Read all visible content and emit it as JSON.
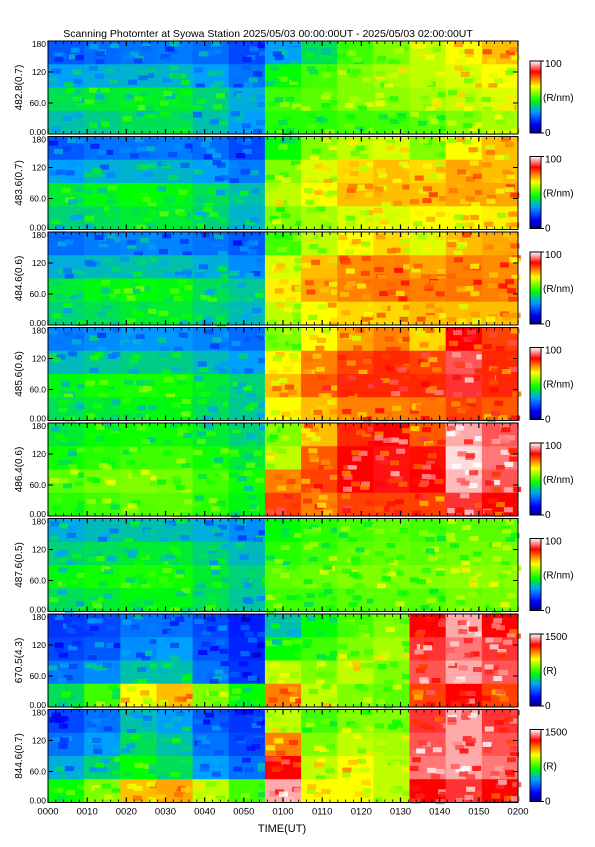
{
  "title": "Scanning Photomter at Syowa Station  2025/05/03 00:00:00UT - 2025/05/03 02:00:00UT",
  "xlabel": "TIME(UT)",
  "x_ticks": [
    "0000",
    "0010",
    "0020",
    "0030",
    "0040",
    "0050",
    "0100",
    "0110",
    "0120",
    "0130",
    "0140",
    "0150",
    "0200"
  ],
  "y_ticks": [
    "0.00",
    "60.0",
    "120",
    "180"
  ],
  "colors": {
    "blue": "#0000ff",
    "green": "#00ff00",
    "yellow": "#ffff00",
    "red": "#ff0000",
    "white": "#ffffff"
  },
  "chart_data": {
    "type": "heatmap",
    "title": "Scanning Photomter at Syowa Station  2025/05/03 00:00:00UT - 2025/05/03 02:00:00UT",
    "xlabel": "TIME(UT)",
    "xlim": [
      "0000",
      "0200"
    ],
    "ylim": [
      0,
      180
    ],
    "panels": [
      {
        "channel": "482.8(0.7)",
        "colorbar_unit": "(R/nm)",
        "colorbar_range": [
          0,
          100
        ],
        "colorbar_ticks": [
          "100",
          "0"
        ],
        "intensity": [
          [
            0.22,
            0.24,
            0.25,
            0.26,
            0.24,
            0.2,
            0.3,
            0.4,
            0.5,
            0.55,
            0.6,
            0.65,
            0.7
          ],
          [
            0.3,
            0.32,
            0.33,
            0.33,
            0.3,
            0.25,
            0.45,
            0.5,
            0.55,
            0.58,
            0.6,
            0.62,
            0.65
          ],
          [
            0.4,
            0.42,
            0.43,
            0.42,
            0.38,
            0.32,
            0.5,
            0.52,
            0.55,
            0.56,
            0.58,
            0.6,
            0.62
          ],
          [
            0.35,
            0.37,
            0.4,
            0.4,
            0.35,
            0.3,
            0.48,
            0.48,
            0.5,
            0.5,
            0.52,
            0.55,
            0.58
          ]
        ]
      },
      {
        "channel": "483.6(0.7)",
        "colorbar_unit": "(R/nm)",
        "colorbar_range": [
          0,
          100
        ],
        "colorbar_ticks": [
          "100",
          "0"
        ],
        "intensity": [
          [
            0.22,
            0.25,
            0.25,
            0.26,
            0.24,
            0.2,
            0.45,
            0.55,
            0.6,
            0.62,
            0.55,
            0.65,
            0.7
          ],
          [
            0.3,
            0.32,
            0.33,
            0.33,
            0.3,
            0.26,
            0.55,
            0.62,
            0.68,
            0.7,
            0.68,
            0.72,
            0.7
          ],
          [
            0.42,
            0.44,
            0.45,
            0.44,
            0.4,
            0.35,
            0.6,
            0.65,
            0.7,
            0.7,
            0.7,
            0.72,
            0.72
          ],
          [
            0.38,
            0.4,
            0.42,
            0.42,
            0.38,
            0.33,
            0.55,
            0.58,
            0.62,
            0.62,
            0.65,
            0.65,
            0.66
          ]
        ]
      },
      {
        "channel": "484.6(0.6)",
        "colorbar_unit": "(R/nm)",
        "colorbar_range": [
          0,
          100
        ],
        "colorbar_ticks": [
          "100",
          "0"
        ],
        "intensity": [
          [
            0.24,
            0.26,
            0.27,
            0.27,
            0.25,
            0.22,
            0.5,
            0.6,
            0.65,
            0.68,
            0.62,
            0.7,
            0.72
          ],
          [
            0.32,
            0.34,
            0.35,
            0.35,
            0.32,
            0.28,
            0.62,
            0.7,
            0.74,
            0.75,
            0.72,
            0.75,
            0.74
          ],
          [
            0.42,
            0.44,
            0.45,
            0.44,
            0.4,
            0.36,
            0.66,
            0.72,
            0.75,
            0.76,
            0.75,
            0.76,
            0.75
          ],
          [
            0.38,
            0.4,
            0.42,
            0.42,
            0.38,
            0.34,
            0.6,
            0.65,
            0.68,
            0.68,
            0.7,
            0.7,
            0.7
          ]
        ]
      },
      {
        "channel": "485.6(0.6)",
        "colorbar_unit": "(R/nm)",
        "colorbar_range": [
          0,
          100
        ],
        "colorbar_ticks": [
          "100",
          "0"
        ],
        "intensity": [
          [
            0.26,
            0.28,
            0.29,
            0.29,
            0.27,
            0.24,
            0.55,
            0.65,
            0.72,
            0.75,
            0.68,
            0.85,
            0.8
          ],
          [
            0.34,
            0.36,
            0.37,
            0.37,
            0.34,
            0.3,
            0.65,
            0.75,
            0.8,
            0.82,
            0.8,
            0.9,
            0.82
          ],
          [
            0.44,
            0.46,
            0.47,
            0.46,
            0.42,
            0.38,
            0.7,
            0.78,
            0.82,
            0.82,
            0.82,
            0.88,
            0.82
          ],
          [
            0.4,
            0.42,
            0.44,
            0.44,
            0.4,
            0.36,
            0.65,
            0.7,
            0.75,
            0.75,
            0.76,
            0.8,
            0.78
          ]
        ]
      },
      {
        "channel": "486.4(0.6)",
        "colorbar_unit": "(R/nm)",
        "colorbar_range": [
          0,
          100
        ],
        "colorbar_ticks": [
          "100",
          "0"
        ],
        "intensity": [
          [
            0.42,
            0.45,
            0.46,
            0.46,
            0.42,
            0.38,
            0.55,
            0.7,
            0.82,
            0.85,
            0.78,
            0.95,
            0.9
          ],
          [
            0.46,
            0.48,
            0.5,
            0.5,
            0.46,
            0.42,
            0.6,
            0.78,
            0.85,
            0.86,
            0.84,
            0.98,
            0.92
          ],
          [
            0.52,
            0.54,
            0.55,
            0.54,
            0.5,
            0.46,
            0.75,
            0.8,
            0.85,
            0.86,
            0.85,
            0.96,
            0.9
          ],
          [
            0.48,
            0.5,
            0.52,
            0.52,
            0.48,
            0.44,
            0.8,
            0.75,
            0.8,
            0.8,
            0.8,
            0.88,
            0.85
          ]
        ]
      },
      {
        "channel": "487.6(0.5)",
        "colorbar_unit": "(R/nm)",
        "colorbar_range": [
          0,
          100
        ],
        "colorbar_ticks": [
          "100",
          "0"
        ],
        "intensity": [
          [
            0.32,
            0.34,
            0.35,
            0.35,
            0.32,
            0.28,
            0.45,
            0.48,
            0.5,
            0.52,
            0.5,
            0.52,
            0.52
          ],
          [
            0.38,
            0.4,
            0.42,
            0.42,
            0.38,
            0.34,
            0.48,
            0.5,
            0.52,
            0.53,
            0.52,
            0.54,
            0.54
          ],
          [
            0.44,
            0.46,
            0.47,
            0.46,
            0.42,
            0.38,
            0.52,
            0.53,
            0.55,
            0.55,
            0.55,
            0.56,
            0.56
          ],
          [
            0.4,
            0.42,
            0.44,
            0.44,
            0.4,
            0.36,
            0.5,
            0.5,
            0.52,
            0.52,
            0.52,
            0.54,
            0.54
          ]
        ]
      },
      {
        "channel": "670.5(4.3)",
        "colorbar_unit": "(R)",
        "colorbar_range": [
          0,
          1500
        ],
        "colorbar_ticks": [
          "1500",
          "0"
        ],
        "intensity": [
          [
            0.18,
            0.2,
            0.25,
            0.25,
            0.2,
            0.15,
            0.35,
            0.45,
            0.5,
            0.55,
            0.85,
            0.95,
            0.85
          ],
          [
            0.2,
            0.22,
            0.28,
            0.3,
            0.22,
            0.16,
            0.45,
            0.5,
            0.55,
            0.58,
            0.88,
            0.92,
            0.88
          ],
          [
            0.25,
            0.28,
            0.35,
            0.35,
            0.25,
            0.18,
            0.6,
            0.55,
            0.6,
            0.55,
            0.9,
            0.95,
            0.9
          ],
          [
            0.4,
            0.5,
            0.65,
            0.7,
            0.55,
            0.45,
            0.75,
            0.6,
            0.55,
            0.52,
            0.8,
            0.85,
            0.8
          ]
        ]
      },
      {
        "channel": "844.6(0.7)",
        "colorbar_unit": "(R)",
        "colorbar_range": [
          0,
          1500
        ],
        "colorbar_ticks": [
          "1500",
          "0"
        ],
        "intensity": [
          [
            0.2,
            0.25,
            0.35,
            0.3,
            0.22,
            0.18,
            0.6,
            0.5,
            0.55,
            0.55,
            0.88,
            0.95,
            0.88
          ],
          [
            0.25,
            0.3,
            0.4,
            0.35,
            0.25,
            0.2,
            0.75,
            0.55,
            0.6,
            0.58,
            0.9,
            0.95,
            0.9
          ],
          [
            0.32,
            0.38,
            0.45,
            0.4,
            0.3,
            0.25,
            0.85,
            0.6,
            0.65,
            0.6,
            0.92,
            0.95,
            0.92
          ],
          [
            0.45,
            0.55,
            0.7,
            0.72,
            0.6,
            0.5,
            0.95,
            0.65,
            0.65,
            0.6,
            0.85,
            0.88,
            0.85
          ]
        ]
      }
    ]
  }
}
